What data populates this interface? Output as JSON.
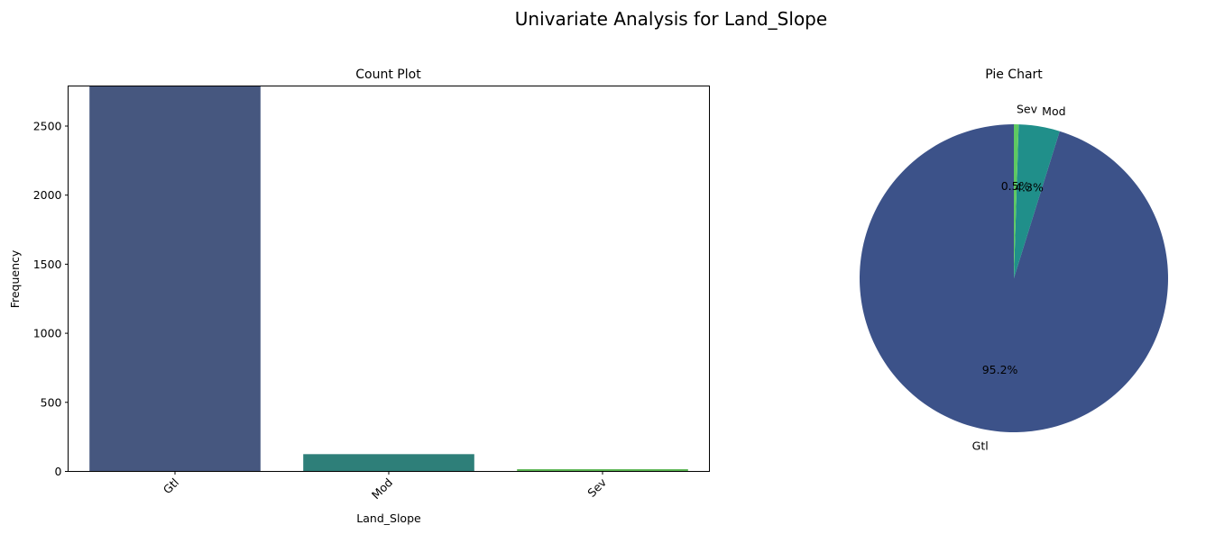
{
  "suptitle": "Univariate Analysis for Land_Slope",
  "chart_data": [
    {
      "type": "bar",
      "title": "Count Plot",
      "xlabel": "Land_Slope",
      "ylabel": "Frequency",
      "categories": [
        "Gtl",
        "Mod",
        "Sev"
      ],
      "values": [
        2789,
        125,
        16
      ],
      "colors": [
        "#46577f",
        "#2e7f79",
        "#5bb653"
      ],
      "ylim": [
        0,
        2790
      ],
      "yticks": [
        0,
        500,
        1000,
        1500,
        2000,
        2500
      ],
      "ytick_labels": [
        "0",
        "500",
        "1000",
        "1500",
        "2000",
        "2500"
      ],
      "xtick_rotation_deg": 45,
      "grid": false
    },
    {
      "type": "pie",
      "title": "Pie Chart",
      "labels": [
        "Gtl",
        "Mod",
        "Sev"
      ],
      "values": [
        95.2,
        4.3,
        0.5
      ],
      "pct_labels": [
        "95.2%",
        "4.3%",
        "0.5%"
      ],
      "colors": [
        "#3c5289",
        "#208f8a",
        "#5ec962"
      ],
      "startangle_deg": 90,
      "direction": "counterclockwise"
    }
  ]
}
